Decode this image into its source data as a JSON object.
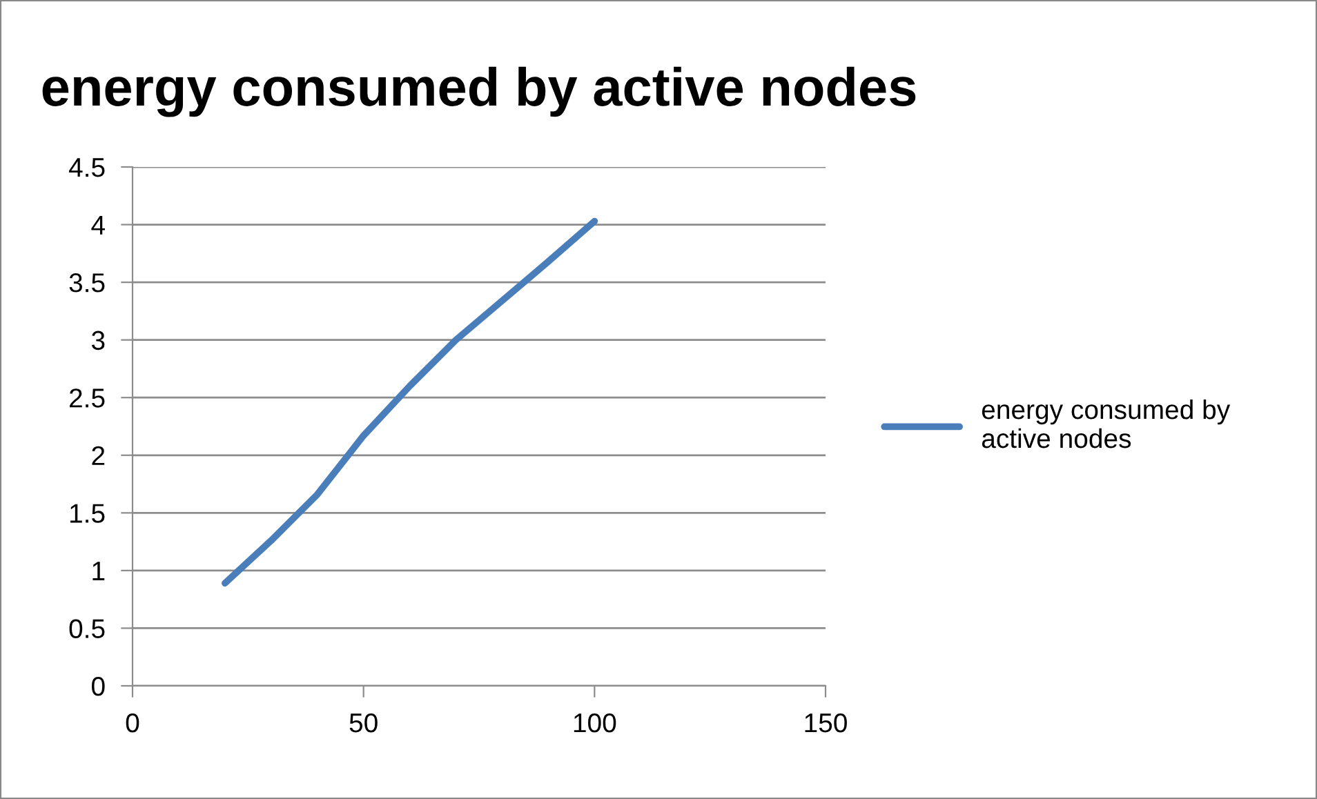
{
  "chart_data": {
    "type": "line",
    "title": "energy consumed by active nodes",
    "x": [
      20,
      30,
      40,
      50,
      60,
      70,
      80,
      90,
      100
    ],
    "series": [
      {
        "name": "energy consumed by\nactive nodes",
        "color": "#4a7ebb",
        "values": [
          0.89,
          1.26,
          1.66,
          2.17,
          2.6,
          3.0,
          3.34,
          3.68,
          4.03
        ]
      }
    ],
    "xlim": [
      0,
      150
    ],
    "xticks": [
      0,
      50,
      100,
      150
    ],
    "ylim": [
      0,
      4.5
    ],
    "yticks": [
      0,
      0.5,
      1,
      1.5,
      2,
      2.5,
      3,
      3.5,
      4,
      4.5
    ],
    "grid": "y",
    "legend": "right",
    "marker": "none",
    "line_style": "solid"
  }
}
